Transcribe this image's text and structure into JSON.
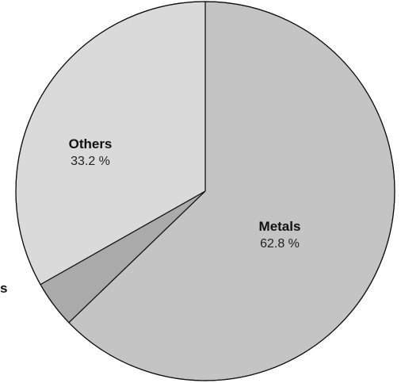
{
  "chart_data": {
    "type": "pie",
    "title": "",
    "slices": [
      {
        "label": "Metals",
        "value": 62.8,
        "value_label": "62.8 %",
        "color": "#c4c4c4"
      },
      {
        "label": "",
        "value": 4.0,
        "value_label": "",
        "color": "#aaaaaa"
      },
      {
        "label": "Others",
        "value": 33.2,
        "value_label": "33.2 %",
        "color": "#dadada"
      }
    ],
    "clipped_label_fragment": "s",
    "start": "12 o'clock",
    "direction": "clockwise"
  }
}
